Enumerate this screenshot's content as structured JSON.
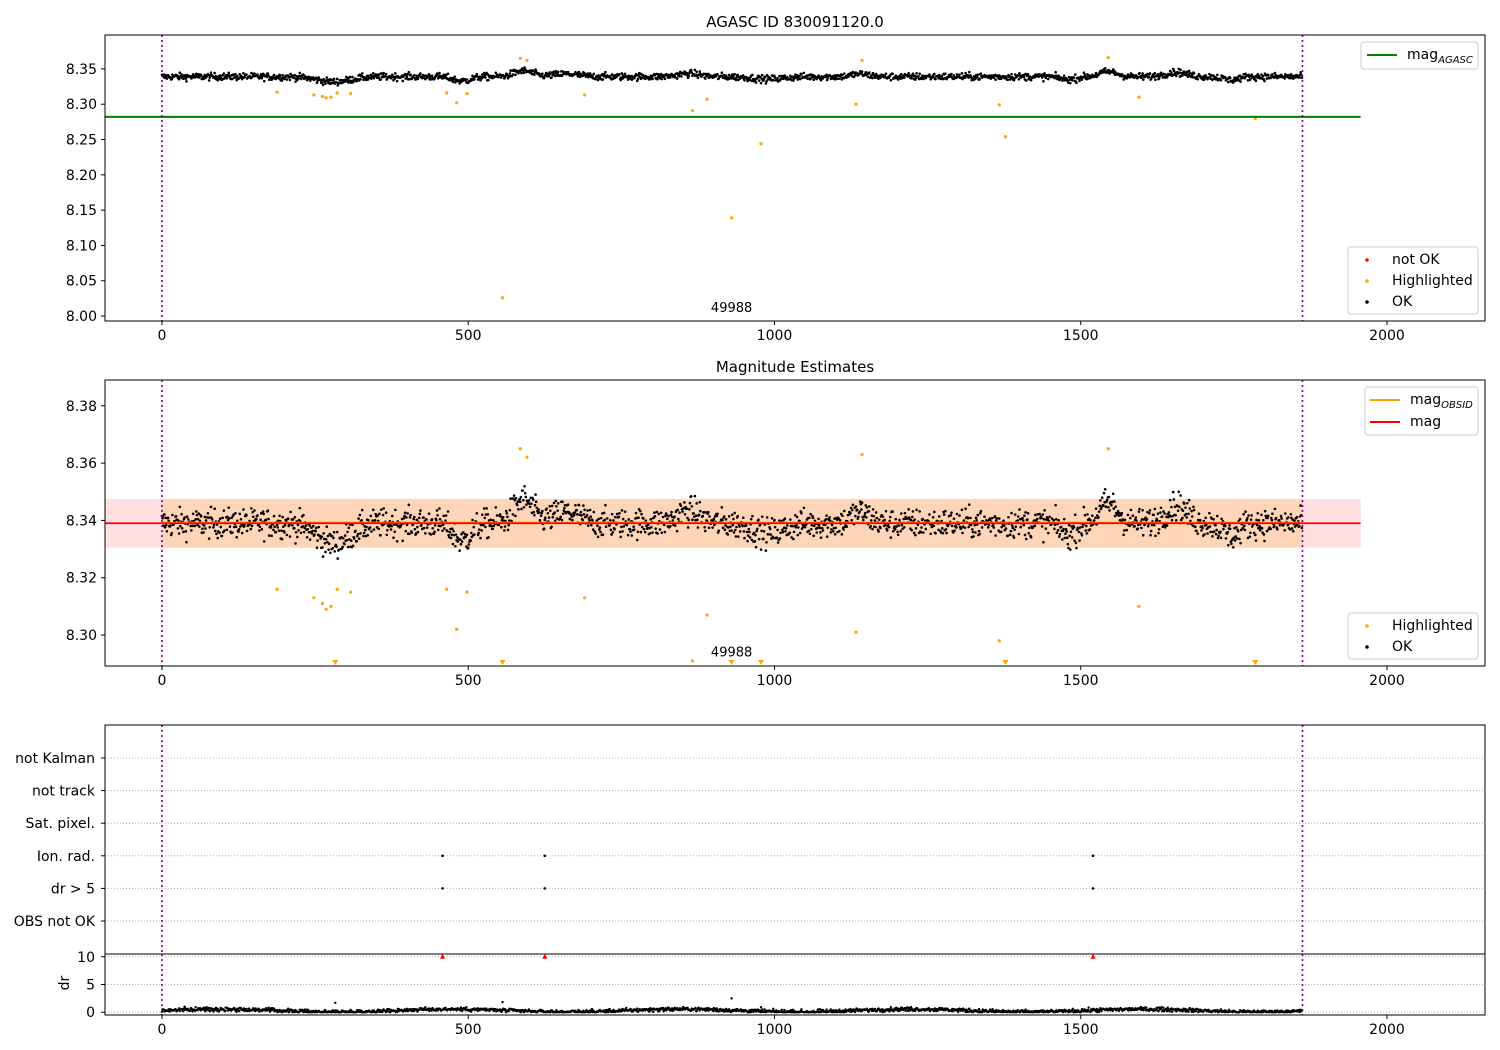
{
  "chart_data": [
    {
      "type": "scatter",
      "title": "AGASC ID 830091120.0",
      "xlim": [
        -93,
        2160
      ],
      "ylim": [
        7.993,
        8.398
      ],
      "xticks": [
        0,
        500,
        1000,
        1500,
        2000
      ],
      "yticks": [
        8.0,
        8.05,
        8.1,
        8.15,
        8.2,
        8.25,
        8.3,
        8.35
      ],
      "grid": false,
      "obs_boundaries": [
        0,
        1862
      ],
      "annotation": {
        "text": "49988",
        "x": 930,
        "y": 8.006
      },
      "mag_agasc": {
        "value": 8.282,
        "x_range": [
          -93,
          1957
        ],
        "color": "#008000"
      },
      "ok_band": {
        "center": 8.339,
        "spread": 0.0045,
        "count": 1862
      },
      "highlighted": {
        "color": "#ffa500",
        "x": [
          188,
          248,
          262,
          268,
          276,
          286,
          308,
          465,
          481,
          498,
          556,
          585,
          596,
          690,
          866,
          890,
          978,
          930,
          1133,
          1143,
          1367,
          1377,
          1545,
          1595,
          1785
        ],
        "y": [
          8.317,
          8.313,
          8.311,
          8.309,
          8.31,
          8.316,
          8.315,
          8.316,
          8.302,
          8.315,
          8.026,
          8.365,
          8.362,
          8.313,
          8.291,
          8.307,
          8.244,
          8.139,
          8.3,
          8.362,
          8.299,
          8.254,
          8.366,
          8.31,
          8.28
        ]
      },
      "legend_series": [
        {
          "label": "not OK",
          "color": "#ff0000"
        },
        {
          "label": "Highlighted",
          "color": "#ffa500"
        },
        {
          "label": "OK",
          "color": "#000000"
        }
      ],
      "legend_lines": [
        {
          "label": "mag",
          "sub": "AGASC",
          "color": "#008000"
        }
      ]
    },
    {
      "type": "scatter",
      "title": "Magnitude Estimates",
      "xlim": [
        -93,
        2160
      ],
      "ylim": [
        8.2892,
        8.389
      ],
      "xticks": [
        0,
        500,
        1000,
        1500,
        2000
      ],
      "yticks": [
        8.3,
        8.32,
        8.34,
        8.36,
        8.38
      ],
      "grid": false,
      "obs_boundaries": [
        0,
        1862
      ],
      "annotation": {
        "text": "49988",
        "x": 930,
        "y": 8.2925
      },
      "mag": {
        "value": 8.339,
        "color": "#ff0000",
        "band": [
          8.3305,
          8.3475
        ],
        "x_range": [
          -93,
          1957
        ]
      },
      "mag_obsid": {
        "value": 8.3392,
        "color": "#ffa500",
        "band": [
          8.3305,
          8.3475
        ],
        "x_range": [
          0,
          1862
        ]
      },
      "highlighted": {
        "color": "#ffa500",
        "x": [
          188,
          248,
          262,
          268,
          276,
          286,
          308,
          465,
          481,
          498,
          585,
          596,
          690,
          866,
          890,
          1133,
          1143,
          1367,
          1545,
          1595
        ],
        "y": [
          8.316,
          8.313,
          8.311,
          8.309,
          8.31,
          8.316,
          8.315,
          8.316,
          8.302,
          8.315,
          8.365,
          8.362,
          8.313,
          8.291,
          8.307,
          8.301,
          8.363,
          8.298,
          8.365,
          8.31
        ]
      },
      "below_axis_markers_x": [
        283,
        556,
        930,
        978,
        1377,
        1785
      ],
      "legend_series": [
        {
          "label": "Highlighted",
          "color": "#ffa500"
        },
        {
          "label": "OK",
          "color": "#000000"
        }
      ],
      "legend_lines": [
        {
          "label": "mag",
          "sub": "OBSID",
          "color": "#ffa500"
        },
        {
          "label": "mag",
          "sub": "",
          "color": "#ff0000"
        }
      ]
    },
    {
      "type": "scatter",
      "title": "",
      "xlim": [
        -93,
        2160
      ],
      "xticks": [
        0,
        500,
        1000,
        1500,
        2000
      ],
      "obs_boundaries": [
        0,
        1862
      ],
      "flag_rows": [
        "not Kalman",
        "not track",
        "Sat. pixel.",
        "Ion. rad.",
        "dr > 5",
        "OBS not OK"
      ],
      "flag_points": [
        {
          "row": "Ion. rad.",
          "x": [
            458,
            625,
            1520
          ]
        },
        {
          "row": "dr > 5",
          "x": [
            458,
            625,
            1520
          ]
        }
      ],
      "dr": {
        "ylabel": "dr",
        "ylim": [
          -0.5,
          10.5
        ],
        "yticks": [
          0,
          5,
          10
        ],
        "clipped_markers_x": [
          458,
          625,
          1520
        ],
        "typical": 0.3,
        "spikes": [
          {
            "x": 283,
            "y": 1.7
          },
          {
            "x": 556,
            "y": 1.8
          },
          {
            "x": 930,
            "y": 2.5
          },
          {
            "x": 978,
            "y": 0.9
          }
        ]
      }
    }
  ]
}
